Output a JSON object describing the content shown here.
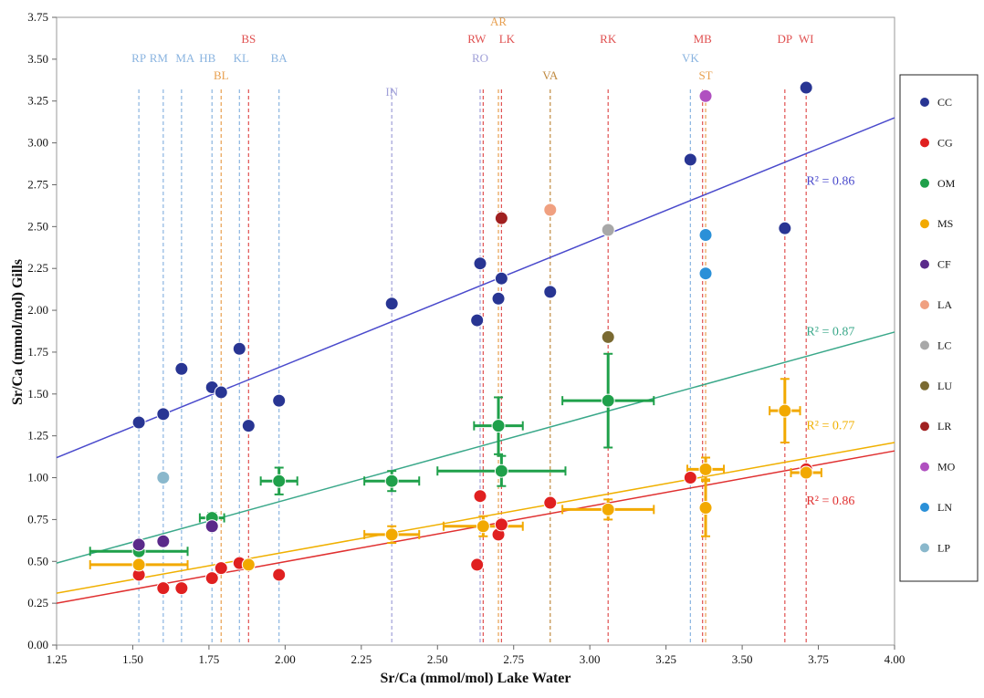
{
  "chart_data": {
    "type": "scatter",
    "xlabel": "Sr/Ca (mmol/mol) Lake Water",
    "ylabel": "Sr/Ca (mmol/mol) Gills",
    "xlim": [
      1.25,
      4.0
    ],
    "ylim": [
      0.0,
      3.75
    ],
    "x_ticks": [
      "1.25",
      "1.50",
      "1.75",
      "2.00",
      "2.25",
      "2.50",
      "2.75",
      "3.00",
      "3.25",
      "3.50",
      "3.75",
      "4.00"
    ],
    "y_ticks": [
      "0.00",
      "0.25",
      "0.50",
      "0.75",
      "1.00",
      "1.25",
      "1.50",
      "1.75",
      "2.00",
      "2.25",
      "2.50",
      "2.75",
      "3.00",
      "3.25",
      "3.50",
      "3.75"
    ],
    "grid": false,
    "legend_position": "right",
    "site_lines": [
      {
        "label": "RP",
        "x": 1.52,
        "color": "#8ab4e0"
      },
      {
        "label": "RM",
        "x": 1.6,
        "color": "#8ab4e0"
      },
      {
        "label": "MA",
        "x": 1.66,
        "color": "#8ab4e0"
      },
      {
        "label": "HB",
        "x": 1.76,
        "color": "#8ab4e0"
      },
      {
        "label": "BL",
        "x": 1.79,
        "color": "#e8a050"
      },
      {
        "label": "KL",
        "x": 1.85,
        "color": "#8ab4e0"
      },
      {
        "label": "BS",
        "x": 1.88,
        "color": "#e05050"
      },
      {
        "label": "BA",
        "x": 1.98,
        "color": "#8ab4e0"
      },
      {
        "label": "IN",
        "x": 2.35,
        "color": "#a0a0d8"
      },
      {
        "label": "RO",
        "x": 2.64,
        "color": "#a0a0d8"
      },
      {
        "label": "RW",
        "x": 2.65,
        "color": "#e05050"
      },
      {
        "label": "AR",
        "x": 2.7,
        "color": "#e8a050"
      },
      {
        "label": "LK",
        "x": 2.71,
        "color": "#e05050"
      },
      {
        "label": "VA",
        "x": 2.87,
        "color": "#c08a40"
      },
      {
        "label": "RK",
        "x": 3.06,
        "color": "#e05050"
      },
      {
        "label": "VK",
        "x": 3.33,
        "color": "#8ab4e0"
      },
      {
        "label": "MB",
        "x": 3.37,
        "color": "#e05050"
      },
      {
        "label": "ST",
        "x": 3.38,
        "color": "#e8a050"
      },
      {
        "label": "DP",
        "x": 3.64,
        "color": "#e05050"
      },
      {
        "label": "WI",
        "x": 3.71,
        "color": "#e05050"
      }
    ],
    "series": [
      {
        "name": "CC",
        "color": "#283593",
        "points": [
          [
            1.52,
            1.33
          ],
          [
            1.6,
            1.38
          ],
          [
            1.66,
            1.65
          ],
          [
            1.76,
            1.54
          ],
          [
            1.79,
            1.51
          ],
          [
            1.85,
            1.77
          ],
          [
            1.88,
            1.31
          ],
          [
            1.98,
            1.46
          ],
          [
            2.35,
            2.04
          ],
          [
            2.63,
            1.94
          ],
          [
            2.64,
            2.28
          ],
          [
            2.7,
            2.07
          ],
          [
            2.71,
            2.19
          ],
          [
            2.87,
            2.11
          ],
          [
            3.33,
            2.9
          ],
          [
            3.64,
            2.49
          ],
          [
            3.71,
            3.33
          ]
        ]
      },
      {
        "name": "CG",
        "color": "#e02020",
        "points": [
          [
            1.52,
            0.42
          ],
          [
            1.6,
            0.34
          ],
          [
            1.66,
            0.34
          ],
          [
            1.76,
            0.4
          ],
          [
            1.79,
            0.46
          ],
          [
            1.85,
            0.49
          ],
          [
            1.98,
            0.42
          ],
          [
            2.63,
            0.48
          ],
          [
            2.64,
            0.89
          ],
          [
            2.7,
            0.66
          ],
          [
            2.71,
            0.72
          ],
          [
            2.87,
            0.85
          ],
          [
            3.33,
            1.0
          ],
          [
            3.71,
            1.05
          ]
        ]
      },
      {
        "name": "OM",
        "color": "#1fa04a",
        "points": [
          [
            1.52,
            0.56
          ],
          [
            1.76,
            0.76
          ],
          [
            1.98,
            0.98
          ],
          [
            2.35,
            0.98
          ],
          [
            2.7,
            1.31
          ],
          [
            2.71,
            1.04
          ],
          [
            3.06,
            1.46
          ]
        ]
      },
      {
        "name": "MS",
        "color": "#f2a900",
        "points": [
          [
            1.52,
            0.48
          ],
          [
            1.88,
            0.48
          ],
          [
            2.35,
            0.66
          ],
          [
            2.65,
            0.71
          ],
          [
            3.06,
            0.81
          ],
          [
            3.38,
            1.05
          ],
          [
            3.38,
            0.82
          ],
          [
            3.64,
            1.4
          ],
          [
            3.71,
            1.03
          ]
        ]
      },
      {
        "name": "CF",
        "color": "#5a2a8a",
        "points": [
          [
            1.52,
            0.6
          ],
          [
            1.6,
            0.62
          ],
          [
            1.76,
            0.71
          ]
        ]
      },
      {
        "name": "LA",
        "color": "#f0a080",
        "points": [
          [
            2.87,
            2.6
          ]
        ]
      },
      {
        "name": "LC",
        "color": "#a8a8a8",
        "points": [
          [
            3.06,
            2.48
          ]
        ]
      },
      {
        "name": "LU",
        "color": "#7a6a32",
        "points": [
          [
            3.06,
            1.84
          ]
        ]
      },
      {
        "name": "LR",
        "color": "#a02020",
        "points": [
          [
            2.71,
            2.55
          ]
        ]
      },
      {
        "name": "MO",
        "color": "#b050c0",
        "points": [
          [
            3.38,
            3.28
          ]
        ]
      },
      {
        "name": "LN",
        "color": "#2a90d8",
        "points": [
          [
            3.38,
            2.45
          ],
          [
            3.38,
            2.22
          ]
        ]
      },
      {
        "name": "LP",
        "color": "#8ab8cc",
        "points": [
          [
            1.6,
            1.0
          ]
        ]
      }
    ],
    "error_bars": [
      {
        "series": "OM",
        "x": 1.52,
        "y": 0.56,
        "xerr": 0.16,
        "yerr": 0.0
      },
      {
        "series": "OM",
        "x": 1.76,
        "y": 0.76,
        "xerr": 0.04,
        "yerr": 0.03
      },
      {
        "series": "OM",
        "x": 1.98,
        "y": 0.98,
        "xerr": 0.06,
        "yerr": 0.08
      },
      {
        "series": "OM",
        "x": 2.35,
        "y": 0.98,
        "xerr": 0.09,
        "yerr": 0.06
      },
      {
        "series": "OM",
        "x": 2.7,
        "y": 1.31,
        "xerr": 0.08,
        "yerr": 0.17
      },
      {
        "series": "OM",
        "x": 2.71,
        "y": 1.04,
        "xerr": 0.21,
        "yerr": 0.09
      },
      {
        "series": "OM",
        "x": 3.06,
        "y": 1.46,
        "xerr": 0.15,
        "yerr": 0.28
      },
      {
        "series": "MS",
        "x": 1.52,
        "y": 0.48,
        "xerr": 0.16,
        "yerr": 0.0
      },
      {
        "series": "MS",
        "x": 2.35,
        "y": 0.66,
        "xerr": 0.09,
        "yerr": 0.05
      },
      {
        "series": "MS",
        "x": 2.65,
        "y": 0.71,
        "xerr": 0.13,
        "yerr": 0.06
      },
      {
        "series": "MS",
        "x": 3.06,
        "y": 0.81,
        "xerr": 0.15,
        "yerr": 0.06
      },
      {
        "series": "MS",
        "x": 3.38,
        "y": 1.05,
        "xerr": 0.06,
        "yerr": 0.07
      },
      {
        "series": "MS",
        "x": 3.38,
        "y": 0.82,
        "xerr": 0.0,
        "yerr": 0.17
      },
      {
        "series": "MS",
        "x": 3.64,
        "y": 1.4,
        "xerr": 0.05,
        "yerr": 0.19
      },
      {
        "series": "MS",
        "x": 3.71,
        "y": 1.03,
        "xerr": 0.05,
        "yerr": 0.0
      }
    ],
    "trendlines": [
      {
        "series": "CC",
        "color": "#4a4acc",
        "x0": 1.25,
        "y0": 1.12,
        "x1": 4.0,
        "y1": 3.15,
        "r2": "R² = 0.86",
        "r2_x": 3.79,
        "r2_y": 2.75
      },
      {
        "series": "OM",
        "color": "#3aa88a",
        "x0": 1.25,
        "y0": 0.49,
        "x1": 4.0,
        "y1": 1.87,
        "r2": "R² = 0.87",
        "r2_x": 3.79,
        "r2_y": 1.85
      },
      {
        "series": "MS",
        "color": "#f0b000",
        "x0": 1.25,
        "y0": 0.31,
        "x1": 4.0,
        "y1": 1.21,
        "r2": "R² = 0.77",
        "r2_x": 3.79,
        "r2_y": 1.29
      },
      {
        "series": "CG",
        "color": "#e03030",
        "x0": 1.25,
        "y0": 0.25,
        "x1": 4.0,
        "y1": 1.16,
        "r2": "R² = 0.86",
        "r2_x": 3.79,
        "r2_y": 0.84
      }
    ]
  }
}
